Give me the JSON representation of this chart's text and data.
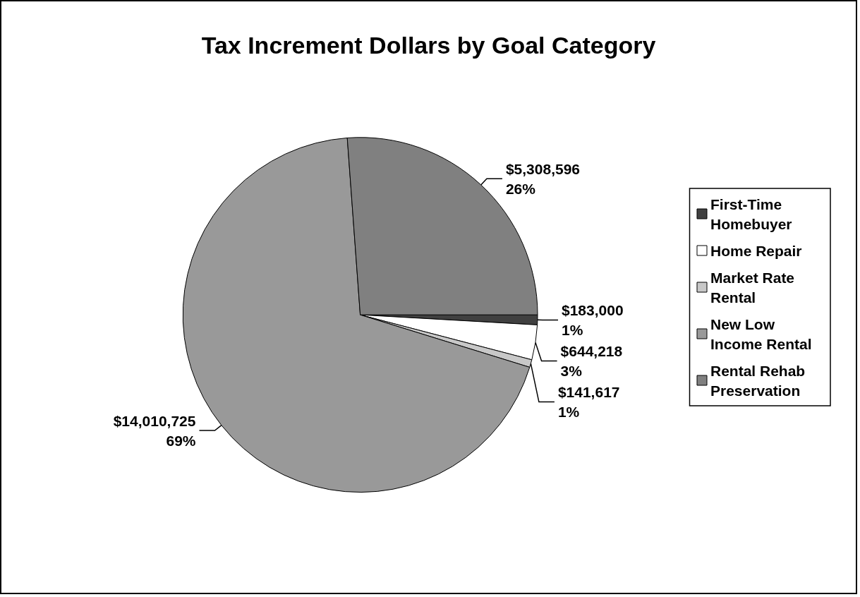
{
  "chart_data": {
    "type": "pie",
    "title": "Tax Increment Dollars by Goal Category",
    "categories": [
      "First-Time Homebuyer",
      "Home Repair",
      "Market Rate Rental",
      "New Low Income Rental",
      "Rental Rehab Preservation"
    ],
    "values": [
      183000,
      644218,
      141617,
      14010725,
      5308596
    ],
    "colors": [
      "#404040",
      "#ffffff",
      "#c8c8c8",
      "#999999",
      "#808080"
    ],
    "value_labels": [
      "$183,000\n1%",
      "$644,218\n3%",
      "$141,617\n1%",
      "$14,010,725\n69%",
      "$5,308,596\n26%"
    ],
    "legend": "right"
  }
}
